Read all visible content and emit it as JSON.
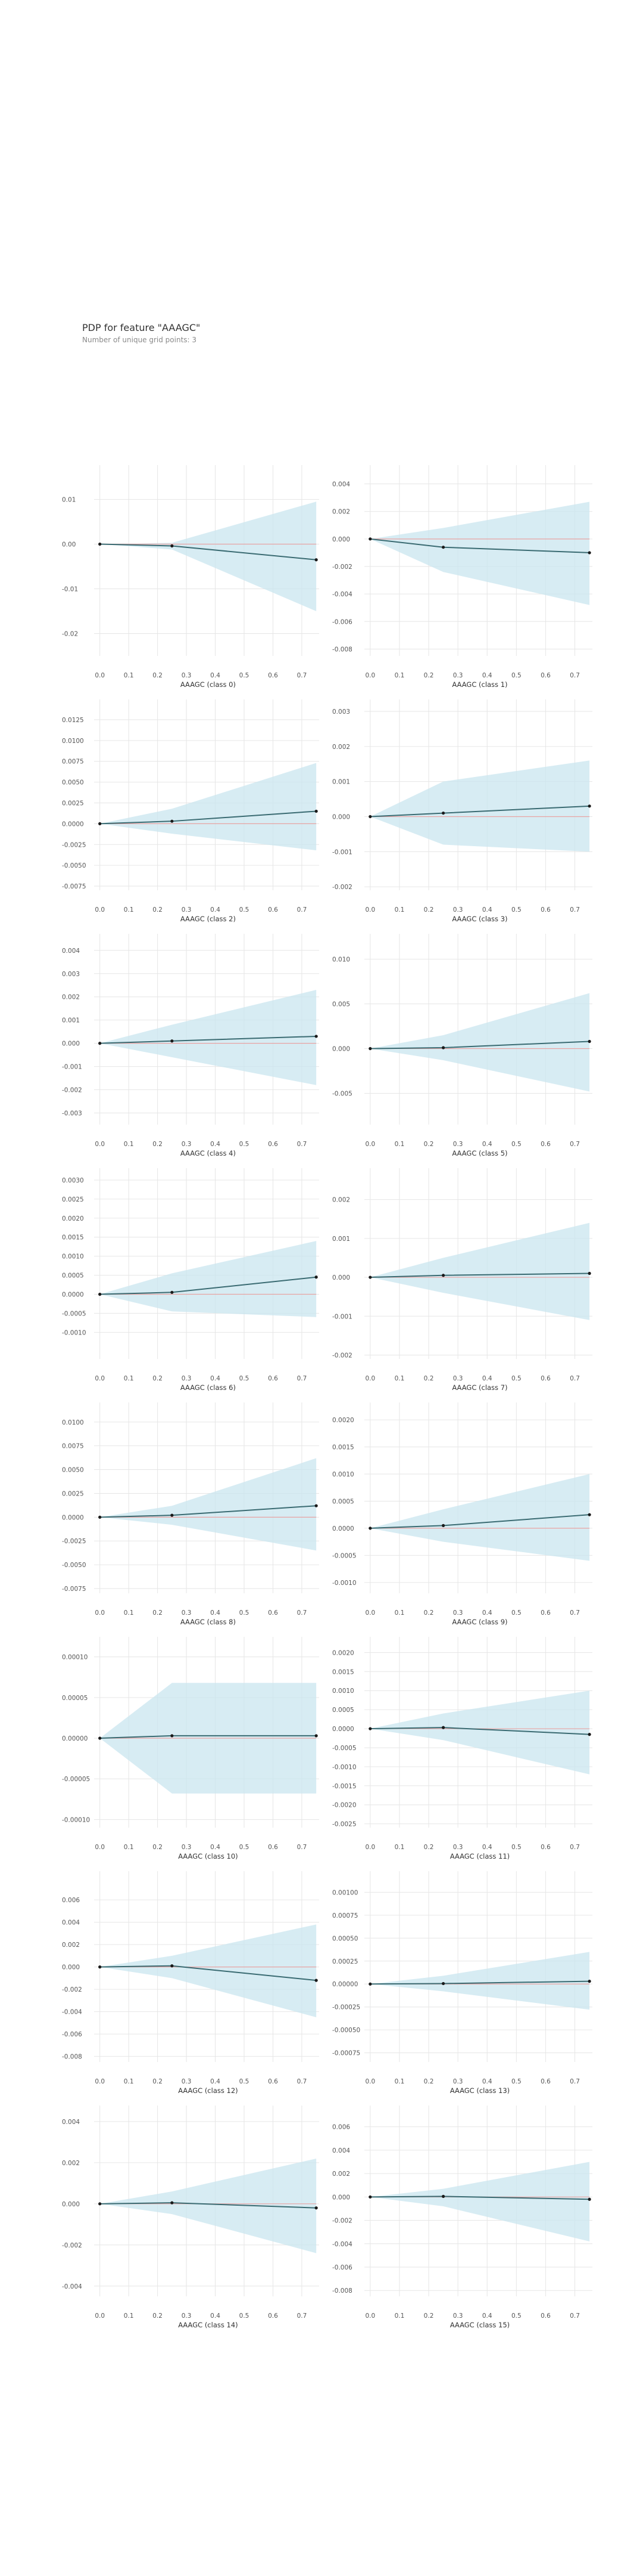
{
  "header": {
    "title": "PDP for feature \"AAAGC\"",
    "subtitle": "Number of unique grid points: 3"
  },
  "colors": {
    "band": "#c9e6ef",
    "line": "#3a6b72",
    "zero_line": "#e8a3a3",
    "grid": "#e6e6e6",
    "tick_text": "#555555",
    "point": "#1a1a1a"
  },
  "chart_data": [
    {
      "type": "line",
      "xlabel": "AAAGC (class 0)",
      "x": [
        0,
        0.25,
        0.75
      ],
      "y": [
        0,
        -0.0004,
        -0.0035
      ],
      "upper": [
        0,
        0.0003,
        0.0095
      ],
      "lower": [
        0,
        -0.0012,
        -0.015
      ],
      "ylim": [
        -0.025,
        0.015
      ],
      "yticks": [
        -0.02,
        -0.01,
        0,
        0.01
      ],
      "ytick_labels": [
        "-0.02",
        "-0.01",
        "0.00",
        "0.01"
      ],
      "xticks": [
        0,
        0.1,
        0.2,
        0.3,
        0.4,
        0.5,
        0.6,
        0.7
      ],
      "xtick_labels": [
        "0.0",
        "0.1",
        "0.2",
        "0.3",
        "0.4",
        "0.5",
        "0.6",
        "0.7"
      ]
    },
    {
      "type": "line",
      "xlabel": "AAAGC (class 1)",
      "x": [
        0,
        0.25,
        0.75
      ],
      "y": [
        0,
        -0.0006,
        -0.001
      ],
      "upper": [
        0,
        0.0008,
        0.0027
      ],
      "lower": [
        0,
        -0.0024,
        -0.0048
      ],
      "ylim": [
        -0.0085,
        0.0045
      ],
      "yticks": [
        -0.008,
        -0.006,
        -0.004,
        -0.002,
        0,
        0.002,
        0.004
      ],
      "ytick_labels": [
        "-0.008",
        "-0.006",
        "-0.004",
        "-0.002",
        "0.000",
        "0.002",
        "0.004"
      ],
      "xticks": [
        0,
        0.1,
        0.2,
        0.3,
        0.4,
        0.5,
        0.6,
        0.7
      ],
      "xtick_labels": [
        "0.0",
        "0.1",
        "0.2",
        "0.3",
        "0.4",
        "0.5",
        "0.6",
        "0.7"
      ]
    },
    {
      "type": "line",
      "xlabel": "AAAGC (class 2)",
      "x": [
        0,
        0.25,
        0.75
      ],
      "y": [
        0,
        0.0003,
        0.0015
      ],
      "upper": [
        0,
        0.0018,
        0.0073
      ],
      "lower": [
        0,
        -0.0012,
        -0.0032
      ],
      "ylim": [
        -0.008,
        0.0135
      ],
      "yticks": [
        -0.0075,
        -0.005,
        -0.0025,
        0,
        0.0025,
        0.005,
        0.0075,
        0.01,
        0.0125
      ],
      "ytick_labels": [
        "-0.0075",
        "-0.0050",
        "-0.0025",
        "0.0000",
        "0.0025",
        "0.0050",
        "0.0075",
        "0.0100",
        "0.0125"
      ],
      "xticks": [
        0,
        0.1,
        0.2,
        0.3,
        0.4,
        0.5,
        0.6,
        0.7
      ],
      "xtick_labels": [
        "0.0",
        "0.1",
        "0.2",
        "0.3",
        "0.4",
        "0.5",
        "0.6",
        "0.7"
      ]
    },
    {
      "type": "line",
      "xlabel": "AAAGC (class 3)",
      "x": [
        0,
        0.25,
        0.75
      ],
      "y": [
        0,
        0.0001,
        0.0003
      ],
      "upper": [
        0,
        0.001,
        0.0016
      ],
      "lower": [
        0,
        -0.0008,
        -0.001
      ],
      "ylim": [
        -0.0021,
        0.003
      ],
      "yticks": [
        -0.002,
        -0.001,
        0,
        0.001,
        0.002,
        0.003
      ],
      "ytick_labels": [
        "-0.002",
        "-0.001",
        "0.000",
        "0.001",
        "0.002",
        "0.003"
      ],
      "xticks": [
        0,
        0.1,
        0.2,
        0.3,
        0.4,
        0.5,
        0.6,
        0.7
      ],
      "xtick_labels": [
        "0.0",
        "0.1",
        "0.2",
        "0.3",
        "0.4",
        "0.5",
        "0.6",
        "0.7"
      ]
    },
    {
      "type": "line",
      "xlabel": "AAAGC (class 4)",
      "x": [
        0,
        0.25,
        0.75
      ],
      "y": [
        0,
        0.0001,
        0.0003
      ],
      "upper": [
        0,
        0.0008,
        0.0023
      ],
      "lower": [
        0,
        -0.0006,
        -0.0018
      ],
      "ylim": [
        -0.0035,
        0.0042
      ],
      "yticks": [
        -0.003,
        -0.002,
        -0.001,
        0,
        0.001,
        0.002,
        0.003,
        0.004
      ],
      "ytick_labels": [
        "-0.003",
        "-0.002",
        "-0.001",
        "0.000",
        "0.001",
        "0.002",
        "0.003",
        "0.004"
      ],
      "xticks": [
        0,
        0.1,
        0.2,
        0.3,
        0.4,
        0.5,
        0.6,
        0.7
      ],
      "xtick_labels": [
        "0.0",
        "0.1",
        "0.2",
        "0.3",
        "0.4",
        "0.5",
        "0.6",
        "0.7"
      ]
    },
    {
      "type": "line",
      "xlabel": "AAAGC (class 5)",
      "x": [
        0,
        0.25,
        0.75
      ],
      "y": [
        0,
        0.0001,
        0.0008
      ],
      "upper": [
        0,
        0.0015,
        0.0062
      ],
      "lower": [
        0,
        -0.0013,
        -0.0048
      ],
      "ylim": [
        -0.0085,
        0.0115
      ],
      "yticks": [
        -0.005,
        0,
        0.005,
        0.01
      ],
      "ytick_labels": [
        "-0.005",
        "0.000",
        "0.005",
        "0.010"
      ],
      "xticks": [
        0,
        0.1,
        0.2,
        0.3,
        0.4,
        0.5,
        0.6,
        0.7
      ],
      "xtick_labels": [
        "0.0",
        "0.1",
        "0.2",
        "0.3",
        "0.4",
        "0.5",
        "0.6",
        "0.7"
      ]
    },
    {
      "type": "line",
      "xlabel": "AAAGC (class 6)",
      "x": [
        0,
        0.25,
        0.75
      ],
      "y": [
        0,
        5e-05,
        0.00045
      ],
      "upper": [
        0,
        0.00055,
        0.0014
      ],
      "lower": [
        0,
        -0.00045,
        -0.0006
      ],
      "ylim": [
        -0.0017,
        0.003
      ],
      "yticks": [
        -0.001,
        -0.0005,
        0,
        0.0005,
        0.001,
        0.0015,
        0.002,
        0.0025,
        0.003
      ],
      "ytick_labels": [
        "-0.0010",
        "-0.0005",
        "0.0000",
        "0.0005",
        "0.0010",
        "0.0015",
        "0.0020",
        "0.0025",
        "0.0030"
      ],
      "xticks": [
        0,
        0.1,
        0.2,
        0.3,
        0.4,
        0.5,
        0.6,
        0.7
      ],
      "xtick_labels": [
        "0.0",
        "0.1",
        "0.2",
        "0.3",
        "0.4",
        "0.5",
        "0.6",
        "0.7"
      ]
    },
    {
      "type": "line",
      "xlabel": "AAAGC (class 7)",
      "x": [
        0,
        0.25,
        0.75
      ],
      "y": [
        0,
        5e-05,
        0.0001
      ],
      "upper": [
        0,
        0.0005,
        0.0014
      ],
      "lower": [
        0,
        -0.0004,
        -0.0011
      ],
      "ylim": [
        -0.0021,
        0.0025
      ],
      "yticks": [
        -0.002,
        -0.001,
        0,
        0.001,
        0.002
      ],
      "ytick_labels": [
        "-0.002",
        "-0.001",
        "0.000",
        "0.001",
        "0.002"
      ],
      "xticks": [
        0,
        0.1,
        0.2,
        0.3,
        0.4,
        0.5,
        0.6,
        0.7
      ],
      "xtick_labels": [
        "0.0",
        "0.1",
        "0.2",
        "0.3",
        "0.4",
        "0.5",
        "0.6",
        "0.7"
      ]
    },
    {
      "type": "line",
      "xlabel": "AAAGC (class 8)",
      "x": [
        0,
        0.25,
        0.75
      ],
      "y": [
        0,
        0.0002,
        0.0012
      ],
      "upper": [
        0,
        0.0012,
        0.0062
      ],
      "lower": [
        0,
        -0.0008,
        -0.0035
      ],
      "ylim": [
        -0.008,
        0.0108
      ],
      "yticks": [
        -0.0075,
        -0.005,
        -0.0025,
        0,
        0.0025,
        0.005,
        0.0075,
        0.01
      ],
      "ytick_labels": [
        "-0.0075",
        "-0.0050",
        "-0.0025",
        "0.0000",
        "0.0025",
        "0.0050",
        "0.0075",
        "0.0100"
      ],
      "xticks": [
        0,
        0.1,
        0.2,
        0.3,
        0.4,
        0.5,
        0.6,
        0.7
      ],
      "xtick_labels": [
        "0.0",
        "0.1",
        "0.2",
        "0.3",
        "0.4",
        "0.5",
        "0.6",
        "0.7"
      ]
    },
    {
      "type": "line",
      "xlabel": "AAAGC (class 9)",
      "x": [
        0,
        0.25,
        0.75
      ],
      "y": [
        0,
        5e-05,
        0.00025
      ],
      "upper": [
        0,
        0.00035,
        0.001
      ],
      "lower": [
        0,
        -0.00025,
        -0.0006
      ],
      "ylim": [
        -0.0012,
        0.0021
      ],
      "yticks": [
        -0.001,
        -0.0005,
        0,
        0.0005,
        0.001,
        0.0015,
        0.002
      ],
      "ytick_labels": [
        "-0.0010",
        "-0.0005",
        "0.0000",
        "0.0005",
        "0.0010",
        "0.0015",
        "0.0020"
      ],
      "xticks": [
        0,
        0.1,
        0.2,
        0.3,
        0.4,
        0.5,
        0.6,
        0.7
      ],
      "xtick_labels": [
        "0.0",
        "0.1",
        "0.2",
        "0.3",
        "0.4",
        "0.5",
        "0.6",
        "0.7"
      ]
    },
    {
      "type": "line",
      "xlabel": "AAAGC (class 10)",
      "x": [
        0,
        0.25,
        0.75
      ],
      "y": [
        0,
        3e-06,
        3e-06
      ],
      "upper": [
        0,
        6.8e-05,
        6.8e-05
      ],
      "lower": [
        0,
        -6.8e-05,
        -6.8e-05
      ],
      "ylim": [
        -0.00011,
        0.00011
      ],
      "yticks": [
        -0.0001,
        -5e-05,
        0,
        5e-05,
        0.0001
      ],
      "ytick_labels": [
        "-0.00010",
        "-0.00005",
        "0.00000",
        "0.00005",
        "0.00010"
      ],
      "xticks": [
        0,
        0.1,
        0.2,
        0.3,
        0.4,
        0.5,
        0.6,
        0.7
      ],
      "xtick_labels": [
        "0.0",
        "0.1",
        "0.2",
        "0.3",
        "0.4",
        "0.5",
        "0.6",
        "0.7"
      ]
    },
    {
      "type": "line",
      "xlabel": "AAAGC (class 11)",
      "x": [
        0,
        0.25,
        0.75
      ],
      "y": [
        0,
        3e-05,
        -0.00015
      ],
      "upper": [
        0,
        0.0004,
        0.001
      ],
      "lower": [
        0,
        -0.0003,
        -0.0012
      ],
      "ylim": [
        -0.0026,
        0.0021
      ],
      "yticks": [
        -0.0025,
        -0.002,
        -0.0015,
        -0.001,
        -0.0005,
        0,
        0.0005,
        0.001,
        0.0015,
        0.002
      ],
      "ytick_labels": [
        "-0.0025",
        "-0.0020",
        "-0.0015",
        "-0.0010",
        "-0.0005",
        "0.0000",
        "0.0005",
        "0.0010",
        "0.0015",
        "0.0020"
      ],
      "xticks": [
        0,
        0.1,
        0.2,
        0.3,
        0.4,
        0.5,
        0.6,
        0.7
      ],
      "xtick_labels": [
        "0.0",
        "0.1",
        "0.2",
        "0.3",
        "0.4",
        "0.5",
        "0.6",
        "0.7"
      ]
    },
    {
      "type": "line",
      "xlabel": "AAAGC (class 12)",
      "x": [
        0,
        0.25,
        0.75
      ],
      "y": [
        0,
        0.0001,
        -0.0012
      ],
      "upper": [
        0,
        0.001,
        0.0038
      ],
      "lower": [
        0,
        -0.001,
        -0.0045
      ],
      "ylim": [
        -0.0085,
        0.0075
      ],
      "yticks": [
        -0.008,
        -0.006,
        -0.004,
        -0.002,
        0,
        0.002,
        0.004,
        0.006
      ],
      "ytick_labels": [
        "-0.008",
        "-0.006",
        "-0.004",
        "-0.002",
        "0.000",
        "0.002",
        "0.004",
        "0.006"
      ],
      "xticks": [
        0,
        0.1,
        0.2,
        0.3,
        0.4,
        0.5,
        0.6,
        0.7
      ],
      "xtick_labels": [
        "0.0",
        "0.1",
        "0.2",
        "0.3",
        "0.4",
        "0.5",
        "0.6",
        "0.7"
      ]
    },
    {
      "type": "line",
      "xlabel": "AAAGC (class 13)",
      "x": [
        0,
        0.25,
        0.75
      ],
      "y": [
        0,
        5e-06,
        3e-05
      ],
      "upper": [
        0,
        9e-05,
        0.00035
      ],
      "lower": [
        0,
        -8e-05,
        -0.00028
      ],
      "ylim": [
        -0.00085,
        0.0011
      ],
      "yticks": [
        -0.00075,
        -0.0005,
        -0.00025,
        0,
        0.00025,
        0.0005,
        0.00075,
        0.001
      ],
      "ytick_labels": [
        "-0.00075",
        "-0.00050",
        "-0.00025",
        "0.00000",
        "0.00025",
        "0.00050",
        "0.00075",
        "0.00100"
      ],
      "xticks": [
        0,
        0.1,
        0.2,
        0.3,
        0.4,
        0.5,
        0.6,
        0.7
      ],
      "xtick_labels": [
        "0.0",
        "0.1",
        "0.2",
        "0.3",
        "0.4",
        "0.5",
        "0.6",
        "0.7"
      ]
    },
    {
      "type": "line",
      "xlabel": "AAAGC (class 14)",
      "x": [
        0,
        0.25,
        0.75
      ],
      "y": [
        0,
        5e-05,
        -0.0002
      ],
      "upper": [
        0,
        0.0006,
        0.0022
      ],
      "lower": [
        0,
        -0.0005,
        -0.0024
      ],
      "ylim": [
        -0.0045,
        0.0042
      ],
      "yticks": [
        -0.004,
        -0.002,
        0,
        0.002,
        0.004
      ],
      "ytick_labels": [
        "-0.004",
        "-0.002",
        "0.000",
        "0.002",
        "0.004"
      ],
      "xticks": [
        0,
        0.1,
        0.2,
        0.3,
        0.4,
        0.5,
        0.6,
        0.7
      ],
      "xtick_labels": [
        "0.0",
        "0.1",
        "0.2",
        "0.3",
        "0.4",
        "0.5",
        "0.6",
        "0.7"
      ]
    },
    {
      "type": "line",
      "xlabel": "AAAGC (class 15)",
      "x": [
        0,
        0.25,
        0.75
      ],
      "y": [
        0,
        5e-05,
        -0.0002
      ],
      "upper": [
        0,
        0.0007,
        0.003
      ],
      "lower": [
        0,
        -0.0008,
        -0.0038
      ],
      "ylim": [
        -0.0085,
        0.0068
      ],
      "yticks": [
        -0.008,
        -0.006,
        -0.004,
        -0.002,
        0,
        0.002,
        0.004,
        0.006
      ],
      "ytick_labels": [
        "-0.008",
        "-0.006",
        "-0.004",
        "-0.002",
        "0.000",
        "0.002",
        "0.004",
        "0.006"
      ],
      "xticks": [
        0,
        0.1,
        0.2,
        0.3,
        0.4,
        0.5,
        0.6,
        0.7
      ],
      "xtick_labels": [
        "0.0",
        "0.1",
        "0.2",
        "0.3",
        "0.4",
        "0.5",
        "0.6",
        "0.7"
      ]
    }
  ]
}
